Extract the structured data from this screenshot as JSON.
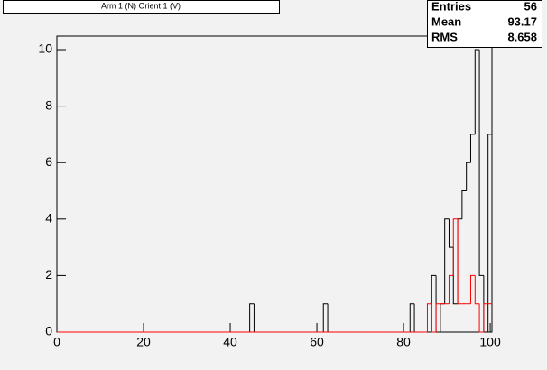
{
  "chart_data": {
    "type": "histogram",
    "title": "Arm 1 (N) Orient 1 (V)",
    "bins": [
      43.5,
      44.5,
      45.5,
      46.5,
      47.5,
      48.5,
      49.5,
      50.5,
      51.5,
      52.5,
      53.5,
      54.5,
      55.5,
      56.5,
      57.5,
      58.5,
      59.5,
      60.5,
      61.5,
      62.5,
      63.5,
      64.5,
      65.5,
      66.5,
      67.5,
      68.5,
      69.5,
      70.5,
      71.5,
      72.5,
      73.5,
      74.5,
      75.5,
      76.5,
      77.5,
      78.5,
      79.5,
      80.5,
      81.5,
      82.5,
      83.5,
      84.5,
      85.5,
      86.5,
      87.5,
      88.5,
      89.5,
      90.5,
      91.5,
      92.5,
      93.5,
      94.5,
      95.5,
      96.5,
      97.5,
      98.5,
      99.5,
      100.5
    ],
    "series": [
      {
        "color": "#000000",
        "values": [
          0,
          1,
          0,
          0,
          0,
          0,
          0,
          0,
          0,
          0,
          0,
          0,
          0,
          0,
          0,
          0,
          0,
          0,
          1,
          0,
          0,
          0,
          0,
          0,
          0,
          0,
          0,
          0,
          0,
          0,
          0,
          0,
          0,
          0,
          0,
          0,
          0,
          0,
          1,
          0,
          0,
          0,
          0,
          2,
          0,
          1,
          4,
          3,
          1,
          4,
          5,
          6,
          7,
          10,
          2,
          0,
          7
        ]
      },
      {
        "color": "#ff0000",
        "values": [
          0,
          0,
          0,
          0,
          0,
          0,
          0,
          0,
          0,
          0,
          0,
          0,
          0,
          0,
          0,
          0,
          0,
          0,
          0,
          0,
          0,
          0,
          0,
          0,
          0,
          0,
          0,
          0,
          0,
          0,
          0,
          0,
          0,
          0,
          0,
          0,
          0,
          0,
          0,
          0,
          0,
          0,
          1,
          0,
          1,
          1,
          1,
          2,
          4,
          1,
          1,
          1,
          2,
          1,
          0,
          1,
          1
        ]
      }
    ],
    "xlim": [
      0,
      100.4
    ],
    "xticks": [
      0,
      20,
      40,
      60,
      80,
      100
    ],
    "ylim": [
      0,
      10.48
    ],
    "yticks": [
      0,
      2,
      4,
      6,
      8,
      10
    ],
    "stats": [
      {
        "label": "Entries",
        "value": 56
      },
      {
        "label": "Mean",
        "value": 93.17
      },
      {
        "label": "RMS",
        "value": 8.658
      }
    ]
  }
}
